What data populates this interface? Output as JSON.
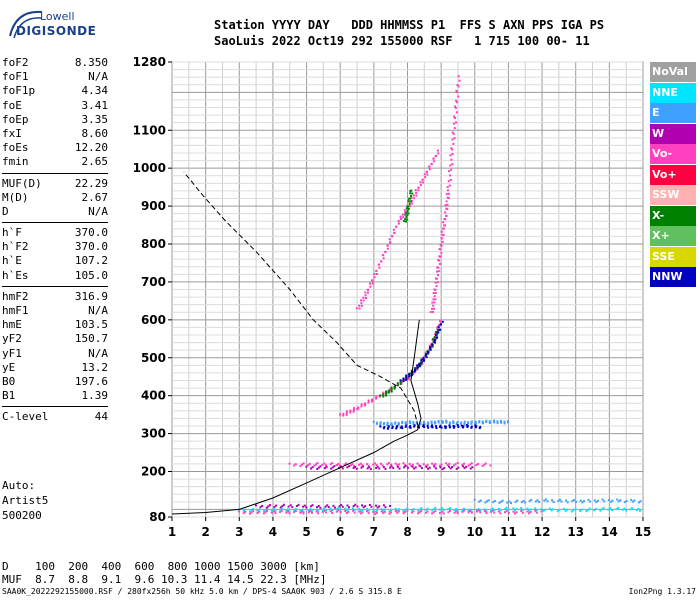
{
  "logo": {
    "line1": "Lowell",
    "line2": "DIGISONDE"
  },
  "header": {
    "row1": "Station YYYY DAY   DDD HHMMSS P1  FFS S AXN PPS IGA PS",
    "row2": "SaoLuis 2022 Oct19 292 155000 RSF   1 715 100 00- 11"
  },
  "params": [
    {
      "group": [
        {
          "label": "foF2",
          "value": "8.350"
        },
        {
          "label": "foF1",
          "value": "N/A"
        },
        {
          "label": "foF1p",
          "value": "4.34"
        },
        {
          "label": "foE",
          "value": "3.41"
        },
        {
          "label": "foEp",
          "value": "3.35"
        },
        {
          "label": "fxI",
          "value": "8.60"
        },
        {
          "label": "foEs",
          "value": "12.20"
        },
        {
          "label": "fmin",
          "value": "2.65"
        }
      ]
    },
    {
      "group": [
        {
          "label": "MUF(D)",
          "value": "22.29"
        },
        {
          "label": "M(D)",
          "value": "2.67"
        },
        {
          "label": "D",
          "value": "N/A"
        }
      ]
    },
    {
      "group": [
        {
          "label": "h`F",
          "value": "370.0"
        },
        {
          "label": "h`F2",
          "value": "370.0"
        },
        {
          "label": "h`E",
          "value": "107.2"
        },
        {
          "label": "h`Es",
          "value": "105.0"
        }
      ]
    },
    {
      "group": [
        {
          "label": "hmF2",
          "value": "316.9"
        },
        {
          "label": "hmF1",
          "value": "N/A"
        },
        {
          "label": "hmE",
          "value": "103.5"
        },
        {
          "label": "yF2",
          "value": "150.7"
        },
        {
          "label": "yF1",
          "value": "N/A"
        },
        {
          "label": "yE",
          "value": "13.2"
        },
        {
          "label": "B0",
          "value": "197.6"
        },
        {
          "label": "B1",
          "value": "1.39"
        }
      ]
    },
    {
      "group": [
        {
          "label": "C-level",
          "value": "44"
        }
      ]
    }
  ],
  "auto": {
    "line1": "Auto:",
    "line2": "Artist5",
    "line3": "500200"
  },
  "legend": [
    {
      "label": "NoVal",
      "color": "#a0a0a0"
    },
    {
      "label": "NNE",
      "color": "#00e5ff"
    },
    {
      "label": "E",
      "color": "#3ea0ff"
    },
    {
      "label": "W",
      "color": "#b000b0"
    },
    {
      "label": "Vo-",
      "color": "#ff40c0"
    },
    {
      "label": "Vo+",
      "color": "#ff0040"
    },
    {
      "label": "SSW",
      "color": "#ffb0b0"
    },
    {
      "label": "X-",
      "color": "#008000"
    },
    {
      "label": "X+",
      "color": "#60c060"
    },
    {
      "label": "SSE",
      "color": "#d8d800"
    },
    {
      "label": "NNW",
      "color": "#0000c0"
    }
  ],
  "muf_table": {
    "row1": "D    100  200  400  600  800 1000 1500 3000 [km]",
    "row2": "MUF  8.7  8.8  9.1  9.6 10.3 11.4 14.5 22.3 [MHz]"
  },
  "footer": "SAA0K_2022292155000.RSF / 280fx256h 50 kHz 5.0 km / DPS-4 SAA0K 903 / 2.6 S 315.8 E",
  "version": "Ion2Png 1.3.17",
  "chart_data": {
    "type": "scatter",
    "x_ticks": [
      "1",
      "2",
      "3",
      "4",
      "5",
      "6",
      "7",
      "8",
      "9",
      "10",
      "11",
      "12",
      "13",
      "14",
      "15"
    ],
    "y_ticks": [
      "80",
      "200",
      "300",
      "400",
      "500",
      "600",
      "700",
      "800",
      "900",
      "1000",
      "1100",
      "1280"
    ],
    "xlim": [
      1,
      15
    ],
    "ylim": [
      80,
      1280
    ],
    "x_grid_step": 0.5,
    "y_grid_step": 20,
    "series": [
      {
        "kind": "profile",
        "style": "solid",
        "points": [
          [
            1,
            88
          ],
          [
            2,
            92
          ],
          [
            3,
            100
          ],
          [
            4,
            130
          ],
          [
            5,
            170
          ],
          [
            6,
            210
          ],
          [
            7,
            250
          ],
          [
            7.6,
            280
          ],
          [
            8,
            296
          ],
          [
            8.3,
            310
          ],
          [
            8.32,
            317
          ]
        ]
      },
      {
        "kind": "profile",
        "style": "solid",
        "points": [
          [
            8.32,
            317
          ],
          [
            8.4,
            340
          ],
          [
            8.3,
            380
          ],
          [
            8.1,
            440
          ],
          [
            8.2,
            500
          ],
          [
            8.35,
            600
          ]
        ]
      },
      {
        "kind": "profile",
        "style": "dashed",
        "points": [
          [
            8.32,
            317
          ],
          [
            8.2,
            360
          ],
          [
            7.8,
            420
          ],
          [
            7.2,
            450
          ],
          [
            6.5,
            480
          ],
          [
            5.9,
            540
          ],
          [
            5.2,
            600
          ],
          [
            4.5,
            680
          ],
          [
            3.5,
            780
          ],
          [
            2.6,
            860
          ],
          [
            1.9,
            930
          ],
          [
            1.35,
            990
          ]
        ]
      },
      {
        "kind": "trace",
        "color": "#ff40c0",
        "points": [
          [
            6,
            350
          ],
          [
            6.5,
            370
          ],
          [
            7,
            395
          ],
          [
            7.5,
            420
          ],
          [
            8,
            450
          ],
          [
            8.3,
            480
          ],
          [
            8.6,
            520
          ],
          [
            8.8,
            560
          ],
          [
            8.95,
            600
          ]
        ]
      },
      {
        "kind": "trace",
        "color": "#008000",
        "points": [
          [
            7.2,
            400
          ],
          [
            7.6,
            425
          ],
          [
            8,
            455
          ],
          [
            8.4,
            490
          ],
          [
            8.7,
            535
          ],
          [
            8.9,
            580
          ]
        ]
      },
      {
        "kind": "trace",
        "color": "#0000c0",
        "points": [
          [
            7.8,
            440
          ],
          [
            8.2,
            470
          ],
          [
            8.5,
            505
          ],
          [
            8.8,
            550
          ],
          [
            9,
            600
          ]
        ]
      },
      {
        "kind": "trace",
        "color": "#ff40c0",
        "points": [
          [
            8.7,
            620
          ],
          [
            8.8,
            680
          ],
          [
            8.9,
            750
          ],
          [
            9.0,
            820
          ],
          [
            9.1,
            880
          ],
          [
            9.2,
            950
          ],
          [
            9.3,
            1050
          ],
          [
            9.4,
            1150
          ],
          [
            9.5,
            1250
          ]
        ]
      },
      {
        "kind": "trace",
        "color": "#ff40c0",
        "points": [
          [
            6.5,
            630
          ],
          [
            6.8,
            680
          ],
          [
            7.1,
            740
          ],
          [
            7.4,
            800
          ],
          [
            7.7,
            860
          ],
          [
            8,
            900
          ],
          [
            8.3,
            950
          ],
          [
            8.6,
            1000
          ],
          [
            8.9,
            1050
          ]
        ]
      },
      {
        "kind": "trace",
        "color": "#008000",
        "points": [
          [
            7.9,
            860
          ],
          [
            8,
            900
          ],
          [
            8.1,
            950
          ]
        ]
      },
      {
        "kind": "trace",
        "color": "#3ea0ff",
        "points": [
          [
            7,
            330
          ],
          [
            7.5,
            328
          ],
          [
            8,
            332
          ],
          [
            8.5,
            330
          ],
          [
            9,
            334
          ],
          [
            9.5,
            330
          ],
          [
            10,
            332
          ],
          [
            10.5,
            334
          ],
          [
            11,
            332
          ]
        ]
      },
      {
        "kind": "trace",
        "color": "#0000c0",
        "points": [
          [
            7.2,
            318
          ],
          [
            7.8,
            320
          ],
          [
            8.4,
            322
          ],
          [
            9,
            320
          ],
          [
            9.6,
            322
          ],
          [
            10.2,
            320
          ]
        ]
      },
      {
        "kind": "trace",
        "color": "#ff40c0",
        "points": [
          [
            4.5,
            220
          ],
          [
            5.5,
            222
          ],
          [
            6.5,
            220
          ],
          [
            7.5,
            222
          ],
          [
            8.5,
            220
          ],
          [
            9.5,
            222
          ],
          [
            10.5,
            220
          ]
        ]
      },
      {
        "kind": "trace",
        "color": "#b000b0",
        "points": [
          [
            5,
            212
          ],
          [
            6,
            214
          ],
          [
            7,
            212
          ],
          [
            8,
            214
          ],
          [
            9,
            212
          ],
          [
            10,
            214
          ]
        ]
      },
      {
        "kind": "trace",
        "color": "#00e5ff",
        "points": [
          [
            3,
            100
          ],
          [
            4,
            102
          ],
          [
            5,
            100
          ],
          [
            6,
            104
          ],
          [
            7,
            100
          ],
          [
            8,
            102
          ],
          [
            9,
            104
          ],
          [
            10,
            100
          ],
          [
            11,
            104
          ],
          [
            12,
            102
          ],
          [
            13,
            100
          ],
          [
            14,
            104
          ],
          [
            15,
            102
          ]
        ]
      },
      {
        "kind": "trace",
        "color": "#ff40c0",
        "points": [
          [
            3,
            94
          ],
          [
            4,
            96
          ],
          [
            5,
            95
          ],
          [
            6,
            97
          ],
          [
            7,
            94
          ],
          [
            8,
            96
          ],
          [
            9,
            95
          ],
          [
            10,
            97
          ],
          [
            11,
            95
          ],
          [
            12,
            96
          ]
        ]
      },
      {
        "kind": "trace",
        "color": "#3ea0ff",
        "points": [
          [
            10,
            125
          ],
          [
            11,
            122
          ],
          [
            12,
            126
          ],
          [
            13,
            124
          ],
          [
            14,
            126
          ],
          [
            15,
            124
          ]
        ]
      },
      {
        "kind": "trace",
        "color": "#b000b0",
        "points": [
          [
            3.5,
            110
          ],
          [
            4.5,
            112
          ],
          [
            5.5,
            110
          ],
          [
            6.5,
            112
          ],
          [
            7.5,
            110
          ]
        ]
      }
    ]
  }
}
